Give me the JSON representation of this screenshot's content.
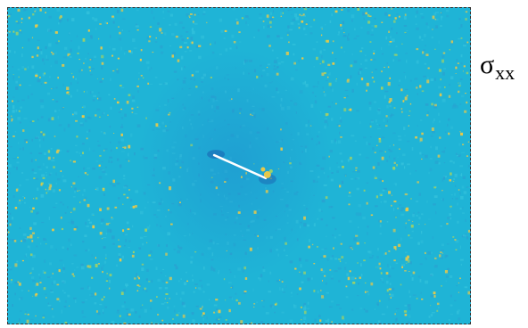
{
  "figure": {
    "label_symbol": "σ",
    "label_subscript": "xx"
  },
  "colors": {
    "background_field": "#1fb4d6",
    "field_variation": "#2a9fd0",
    "hotspot": "#e6c84a",
    "hotspot_alt": "#9bd06a",
    "crack": "#ffffff",
    "crack_shadow": "#1a6fb8",
    "frame": "#333333"
  }
}
